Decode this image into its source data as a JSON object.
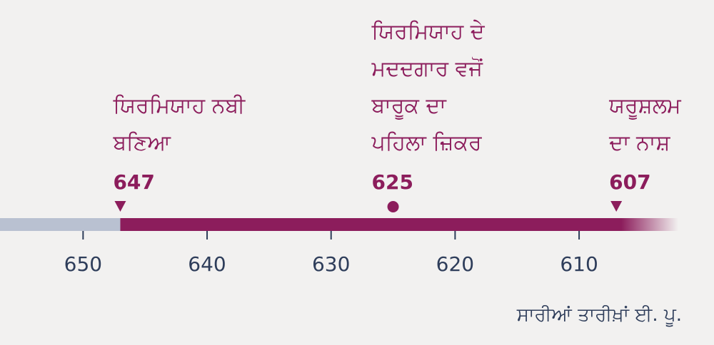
{
  "chart_data": {
    "type": "timeline",
    "events": [
      {
        "lines": [
          "ਯਿਰਮਿਯਾਹ ਨਬੀ",
          "ਬਣਿਆ"
        ],
        "year": 647,
        "marker": "triangle"
      },
      {
        "lines": [
          "ਯਿਰਮਿਯਾਹ ਦੇ",
          "ਮਦਦਗਾਰ ਵਜੋਂ",
          "ਬਾਰੂਕ ਦਾ",
          "ਪਹਿਲਾ ਜ਼ਿਕਰ"
        ],
        "year": 625,
        "marker": "dot"
      },
      {
        "lines": [
          "ਯਰੂਸ਼ਲਮ",
          "ਦਾ ਨਾਸ਼"
        ],
        "year": 607,
        "marker": "triangle"
      }
    ],
    "xlim": [
      656.7,
      602
    ],
    "xticks": [
      650,
      640,
      630,
      620,
      610
    ],
    "note": "ਸਾਰੀਆਂ ਤਾਰੀਖ਼ਾਂ ਈ. ਪੂ.",
    "color": "#8c1d5c",
    "before_color": "#b9c1d1",
    "tick_color": "#2e3d5a"
  }
}
